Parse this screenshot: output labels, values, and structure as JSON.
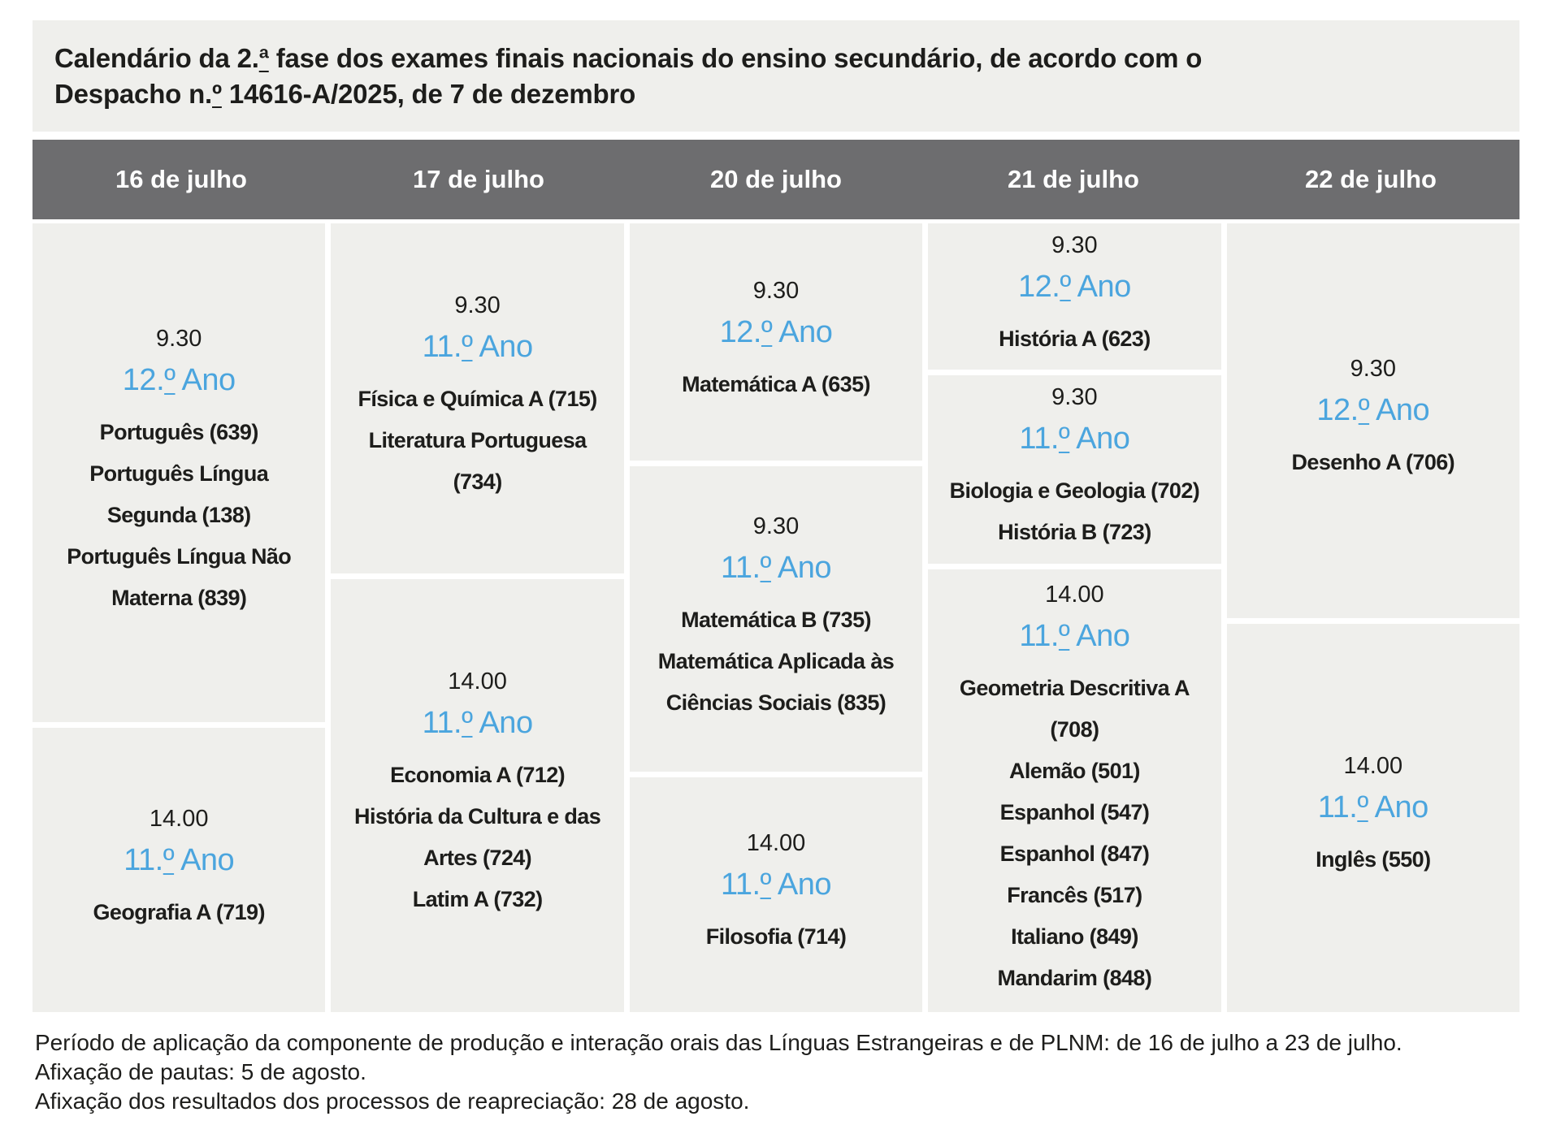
{
  "title": {
    "line1": "Calendário da 2.ª fase dos exames finais nacionais do ensino secundário, de acordo com o",
    "line2": "Despacho n.º 14616-A/2025, de 7 de dezembro"
  },
  "columns": [
    {
      "date": "16 de julho",
      "cells": [
        {
          "time": "9.30",
          "year": "12.º Ano",
          "subjects": [
            "Português (639)",
            "Português Língua\nSegunda (138)",
            "Português Língua Não\nMaterna (839)"
          ]
        },
        {
          "time": "14.00",
          "year": "11.º Ano",
          "subjects": [
            "Geografia A (719)"
          ]
        }
      ]
    },
    {
      "date": "17 de julho",
      "cells": [
        {
          "time": "9.30",
          "year": "11.º Ano",
          "subjects": [
            "Física e Química A (715)",
            "Literatura Portuguesa\n(734)"
          ]
        },
        {
          "time": "14.00",
          "year": "11.º Ano",
          "subjects": [
            "Economia A (712)",
            "História da Cultura e das\nArtes (724)",
            "Latim A (732)"
          ]
        }
      ]
    },
    {
      "date": "20 de julho",
      "cells": [
        {
          "time": "9.30",
          "year": "12.º Ano",
          "subjects": [
            "Matemática A (635)"
          ]
        },
        {
          "time": "9.30",
          "year": "11.º Ano",
          "subjects": [
            "Matemática B (735)",
            "Matemática Aplicada às\nCiências Sociais (835)"
          ]
        },
        {
          "time": "14.00",
          "year": "11.º Ano",
          "subjects": [
            "Filosofia (714)"
          ]
        }
      ]
    },
    {
      "date": "21 de julho",
      "cells": [
        {
          "time": "9.30",
          "year": "12.º Ano",
          "subjects": [
            "História A (623)"
          ]
        },
        {
          "time": "9.30",
          "year": "11.º Ano",
          "subjects": [
            "Biologia e Geologia (702)",
            "História B (723)"
          ]
        },
        {
          "time": "14.00",
          "year": "11.º Ano",
          "subjects": [
            "Geometria Descritiva A\n(708)",
            "Alemão (501)",
            "Espanhol (547)",
            "Espanhol (847)",
            "Francês (517)",
            "Italiano (849)",
            "Mandarim (848)"
          ]
        }
      ]
    },
    {
      "date": "22 de julho",
      "cells": [
        {
          "time": "9.30",
          "year": "12.º Ano",
          "subjects": [
            "Desenho A (706)"
          ]
        },
        {
          "time": "14.00",
          "year": "11.º Ano",
          "subjects": [
            "Inglês (550)"
          ]
        }
      ]
    }
  ],
  "footer": [
    "Período de aplicação da componente de produção e interação orais das Línguas Estrangeiras e de PLNM: de 16 de julho a 23 de julho.",
    "Afixação de pautas: 5 de agosto.",
    "Afixação dos resultados dos processos de reapreciação: 28 de agosto."
  ],
  "colors": {
    "accent_blue": "#4ba5de",
    "header_gray": "#6d6d6f",
    "band_bg": "#efefec",
    "page_bg": "#ffffff"
  }
}
